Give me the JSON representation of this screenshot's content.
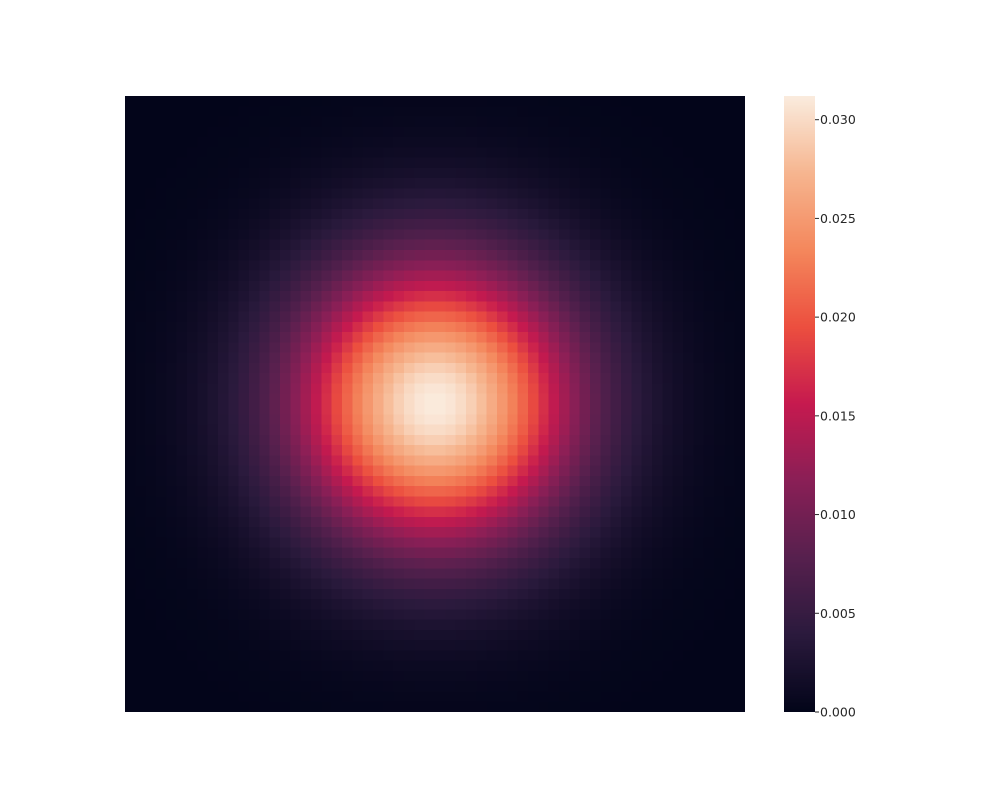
{
  "chart_data": {
    "type": "heatmap",
    "title": "",
    "xlabel": "",
    "ylabel": "",
    "grid_shape": [
      60,
      60
    ],
    "distribution": "2D gaussian density (peak near centre, symmetric)",
    "peak_value": 0.0312,
    "peak_location_fraction": {
      "x": 0.5,
      "y": 0.5
    },
    "sigma_fraction": 0.16,
    "value_range": [
      0.0,
      0.0312
    ],
    "colormap": "rocket",
    "colormap_stops": [
      "#03051a",
      "#2b1a3d",
      "#57204e",
      "#8a1f56",
      "#c61a4f",
      "#ec4f3f",
      "#f4875c",
      "#f6b58f",
      "#faebdd"
    ],
    "colorbar": {
      "ticks": [
        0.0,
        0.005,
        0.01,
        0.015,
        0.02,
        0.025,
        0.03
      ],
      "tick_labels": [
        "0.000",
        "0.005",
        "0.010",
        "0.015",
        "0.020",
        "0.025",
        "0.030"
      ]
    },
    "axes_visible": false,
    "grid": false
  }
}
